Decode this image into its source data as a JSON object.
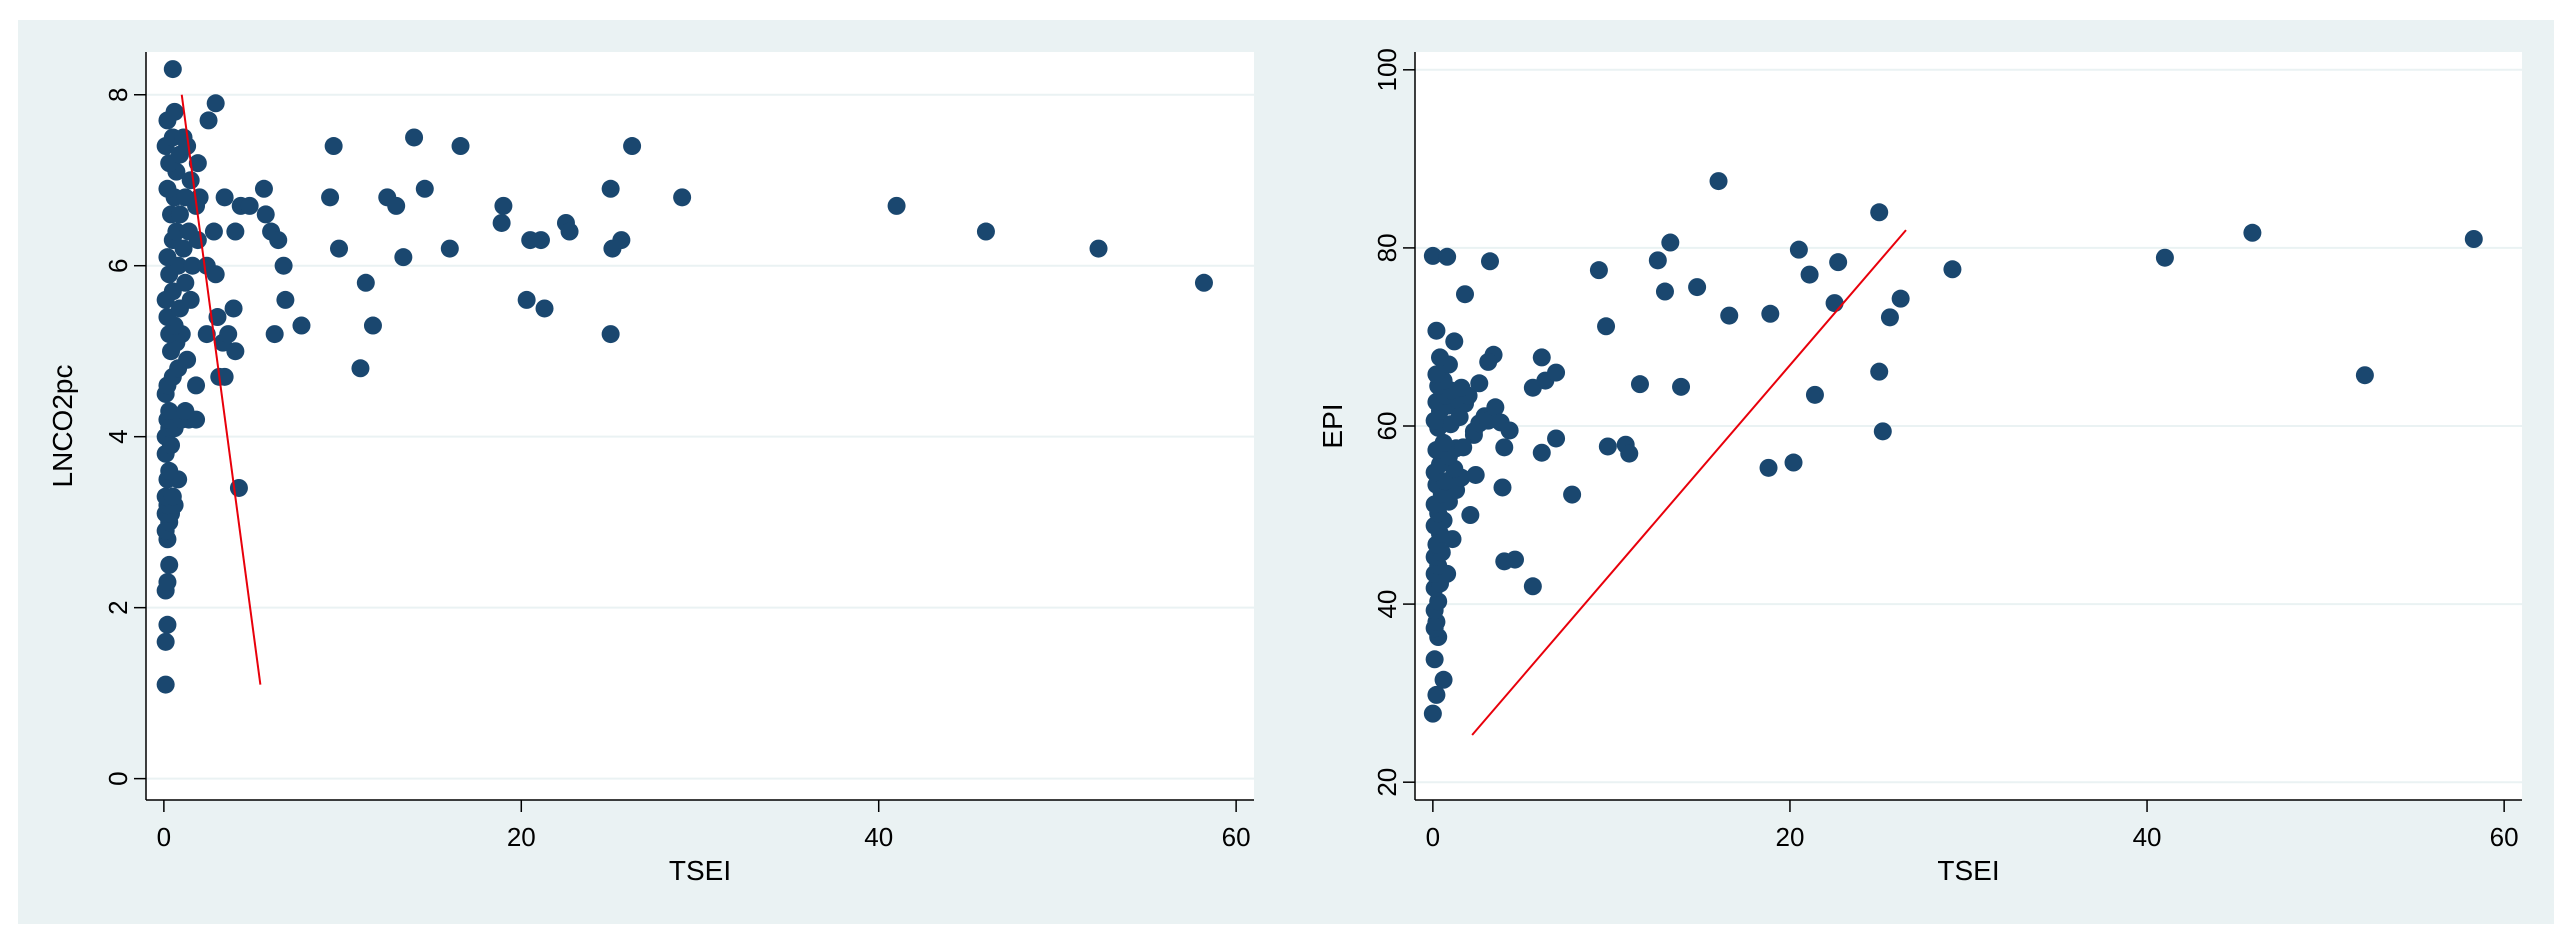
{
  "chart_data": [
    {
      "type": "scatter",
      "xlabel": "TSEI",
      "ylabel": "LNCO2pc",
      "xlim": [
        -1,
        61
      ],
      "ylim": [
        -0.25,
        8.5
      ],
      "xticks": [
        "0",
        "20",
        "40",
        "60"
      ],
      "yticks": [
        "0",
        "2",
        "4",
        "6",
        "8"
      ],
      "grid": "horizontal",
      "marker_color": "#1a476f",
      "fit_color": "#e8000b",
      "fit_line": [
        [
          1.0,
          8.0
        ],
        [
          5.4,
          1.1
        ]
      ],
      "points": [
        [
          0.1,
          1.1
        ],
        [
          0.1,
          1.6
        ],
        [
          0.2,
          1.8
        ],
        [
          0.1,
          2.2
        ],
        [
          0.2,
          2.3
        ],
        [
          0.3,
          2.5
        ],
        [
          0.2,
          2.8
        ],
        [
          0.1,
          2.9
        ],
        [
          0.3,
          3.0
        ],
        [
          0.1,
          3.1
        ],
        [
          0.4,
          3.1
        ],
        [
          0.2,
          3.2
        ],
        [
          0.6,
          3.2
        ],
        [
          0.1,
          3.3
        ],
        [
          0.5,
          3.3
        ],
        [
          0.2,
          3.5
        ],
        [
          0.8,
          3.5
        ],
        [
          0.3,
          3.6
        ],
        [
          0.1,
          3.8
        ],
        [
          0.4,
          3.9
        ],
        [
          0.1,
          4.0
        ],
        [
          0.3,
          4.1
        ],
        [
          0.6,
          4.1
        ],
        [
          0.2,
          4.2
        ],
        [
          1.0,
          4.2
        ],
        [
          1.4,
          4.2
        ],
        [
          1.8,
          4.2
        ],
        [
          0.3,
          4.3
        ],
        [
          1.2,
          4.3
        ],
        [
          0.1,
          4.5
        ],
        [
          1.8,
          4.6
        ],
        [
          0.2,
          4.6
        ],
        [
          0.5,
          4.7
        ],
        [
          0.8,
          4.8
        ],
        [
          1.3,
          4.9
        ],
        [
          0.4,
          5.0
        ],
        [
          0.7,
          5.1
        ],
        [
          1.0,
          5.2
        ],
        [
          0.3,
          5.2
        ],
        [
          0.6,
          5.3
        ],
        [
          0.2,
          5.4
        ],
        [
          0.9,
          5.5
        ],
        [
          1.5,
          5.6
        ],
        [
          0.1,
          5.6
        ],
        [
          0.5,
          5.7
        ],
        [
          1.2,
          5.8
        ],
        [
          0.3,
          5.9
        ],
        [
          0.8,
          6.0
        ],
        [
          1.6,
          6.0
        ],
        [
          0.2,
          6.1
        ],
        [
          1.1,
          6.2
        ],
        [
          0.5,
          6.3
        ],
        [
          1.9,
          6.3
        ],
        [
          0.7,
          6.4
        ],
        [
          1.4,
          6.4
        ],
        [
          0.4,
          6.6
        ],
        [
          0.9,
          6.6
        ],
        [
          1.8,
          6.7
        ],
        [
          0.6,
          6.8
        ],
        [
          1.2,
          6.8
        ],
        [
          0.2,
          6.9
        ],
        [
          1.5,
          7.0
        ],
        [
          0.7,
          7.1
        ],
        [
          0.3,
          7.2
        ],
        [
          1.9,
          7.2
        ],
        [
          0.9,
          7.3
        ],
        [
          0.1,
          7.4
        ],
        [
          1.3,
          7.4
        ],
        [
          0.5,
          7.5
        ],
        [
          1.1,
          7.5
        ],
        [
          0.2,
          7.7
        ],
        [
          0.6,
          7.8
        ],
        [
          0.5,
          8.3
        ],
        [
          2.5,
          7.7
        ],
        [
          2.9,
          7.9
        ],
        [
          3.4,
          6.8
        ],
        [
          2.0,
          6.8
        ],
        [
          2.8,
          6.4
        ],
        [
          2.4,
          6.0
        ],
        [
          2.9,
          5.9
        ],
        [
          2.4,
          5.2
        ],
        [
          3.0,
          5.4
        ],
        [
          3.3,
          5.1
        ],
        [
          3.1,
          4.7
        ],
        [
          3.4,
          4.7
        ],
        [
          3.6,
          5.2
        ],
        [
          4.0,
          5.0
        ],
        [
          3.9,
          5.5
        ],
        [
          4.0,
          6.4
        ],
        [
          4.3,
          6.7
        ],
        [
          4.8,
          6.7
        ],
        [
          4.2,
          3.4
        ],
        [
          5.6,
          6.9
        ],
        [
          5.7,
          6.6
        ],
        [
          6.0,
          6.4
        ],
        [
          6.4,
          6.3
        ],
        [
          6.7,
          6.0
        ],
        [
          6.8,
          5.6
        ],
        [
          6.2,
          5.2
        ],
        [
          7.7,
          5.3
        ],
        [
          9.3,
          6.8
        ],
        [
          9.5,
          7.4
        ],
        [
          9.8,
          6.2
        ],
        [
          11.0,
          4.8
        ],
        [
          11.3,
          5.8
        ],
        [
          11.7,
          5.3
        ],
        [
          12.5,
          6.8
        ],
        [
          13.0,
          6.7
        ],
        [
          13.4,
          6.1
        ],
        [
          14.0,
          7.5
        ],
        [
          14.6,
          6.9
        ],
        [
          16.0,
          6.2
        ],
        [
          16.6,
          7.4
        ],
        [
          18.9,
          6.5
        ],
        [
          19.0,
          6.7
        ],
        [
          20.3,
          5.6
        ],
        [
          20.5,
          6.3
        ],
        [
          21.1,
          6.3
        ],
        [
          21.3,
          5.5
        ],
        [
          22.5,
          6.5
        ],
        [
          22.7,
          6.4
        ],
        [
          25.0,
          6.9
        ],
        [
          25.0,
          5.2
        ],
        [
          25.1,
          6.2
        ],
        [
          25.6,
          6.3
        ],
        [
          26.2,
          7.4
        ],
        [
          29.0,
          6.8
        ],
        [
          41.0,
          6.7
        ],
        [
          46.0,
          6.4
        ],
        [
          52.3,
          6.2
        ],
        [
          58.2,
          5.8
        ]
      ]
    },
    {
      "type": "scatter",
      "xlabel": "TSEI",
      "ylabel": "EPI",
      "xlim": [
        -1,
        61
      ],
      "ylim": [
        18,
        102
      ],
      "xticks": [
        "0",
        "20",
        "40",
        "60"
      ],
      "yticks": [
        "20",
        "40",
        "60",
        "80",
        "100"
      ],
      "grid": "horizontal",
      "marker_color": "#1a476f",
      "fit_color": "#e8000b",
      "fit_line": [
        [
          2.2,
          25.3
        ],
        [
          26.5,
          82.0
        ]
      ],
      "points": [
        [
          0.0,
          27.7
        ],
        [
          0.2,
          29.8
        ],
        [
          0.6,
          31.5
        ],
        [
          0.1,
          33.8
        ],
        [
          0.3,
          36.3
        ],
        [
          0.1,
          37.3
        ],
        [
          0.2,
          38.0
        ],
        [
          0.1,
          39.3
        ],
        [
          0.3,
          40.3
        ],
        [
          0.1,
          41.8
        ],
        [
          0.4,
          42.3
        ],
        [
          0.1,
          43.4
        ],
        [
          0.8,
          43.4
        ],
        [
          0.3,
          44.3
        ],
        [
          0.1,
          45.3
        ],
        [
          0.5,
          45.8
        ],
        [
          0.2,
          46.7
        ],
        [
          1.1,
          47.3
        ],
        [
          0.4,
          47.9
        ],
        [
          0.1,
          48.8
        ],
        [
          0.6,
          49.4
        ],
        [
          0.3,
          50.2
        ],
        [
          0.1,
          51.2
        ],
        [
          0.9,
          51.5
        ],
        [
          0.5,
          52.4
        ],
        [
          1.3,
          52.8
        ],
        [
          0.2,
          53.4
        ],
        [
          0.7,
          53.8
        ],
        [
          1.6,
          54.2
        ],
        [
          0.1,
          54.8
        ],
        [
          1.2,
          55.2
        ],
        [
          0.4,
          55.7
        ],
        [
          0.9,
          56.6
        ],
        [
          0.2,
          57.3
        ],
        [
          1.3,
          57.5
        ],
        [
          1.7,
          57.6
        ],
        [
          0.6,
          58.1
        ],
        [
          0.3,
          59.8
        ],
        [
          1.0,
          60.2
        ],
        [
          2.3,
          59.0
        ],
        [
          0.1,
          60.6
        ],
        [
          1.5,
          61.0
        ],
        [
          0.4,
          61.7
        ],
        [
          0.9,
          62.3
        ],
        [
          1.8,
          62.5
        ],
        [
          0.2,
          62.7
        ],
        [
          1.3,
          63.0
        ],
        [
          0.7,
          63.4
        ],
        [
          2.0,
          63.4
        ],
        [
          1.0,
          64.0
        ],
        [
          0.3,
          64.5
        ],
        [
          1.6,
          64.3
        ],
        [
          0.6,
          65.1
        ],
        [
          2.6,
          64.8
        ],
        [
          0.2,
          65.8
        ],
        [
          0.9,
          66.9
        ],
        [
          0.4,
          67.7
        ],
        [
          1.2,
          69.5
        ],
        [
          0.2,
          70.7
        ],
        [
          1.8,
          74.8
        ],
        [
          0.0,
          79.1
        ],
        [
          0.8,
          79.0
        ],
        [
          2.3,
          59.4
        ],
        [
          2.6,
          60.3
        ],
        [
          2.9,
          61.1
        ],
        [
          3.1,
          60.6
        ],
        [
          3.5,
          62.1
        ],
        [
          3.8,
          60.4
        ],
        [
          4.3,
          59.5
        ],
        [
          4.0,
          57.6
        ],
        [
          2.4,
          54.5
        ],
        [
          2.1,
          50.0
        ],
        [
          3.9,
          53.1
        ],
        [
          4.0,
          44.8
        ],
        [
          4.6,
          45.0
        ],
        [
          5.6,
          42.0
        ],
        [
          7.8,
          52.3
        ],
        [
          6.9,
          58.6
        ],
        [
          6.1,
          57.0
        ],
        [
          5.6,
          64.3
        ],
        [
          6.3,
          65.1
        ],
        [
          6.9,
          66.0
        ],
        [
          6.1,
          67.7
        ],
        [
          3.4,
          68.0
        ],
        [
          3.1,
          67.2
        ],
        [
          3.2,
          78.5
        ],
        [
          9.3,
          77.5
        ],
        [
          9.7,
          71.2
        ],
        [
          9.8,
          57.7
        ],
        [
          10.8,
          57.9
        ],
        [
          11.0,
          56.9
        ],
        [
          11.6,
          64.7
        ],
        [
          12.6,
          78.6
        ],
        [
          13.0,
          75.1
        ],
        [
          13.3,
          80.6
        ],
        [
          13.9,
          64.4
        ],
        [
          14.8,
          75.6
        ],
        [
          16.0,
          87.5
        ],
        [
          16.6,
          72.4
        ],
        [
          18.8,
          55.3
        ],
        [
          18.9,
          72.6
        ],
        [
          20.2,
          55.9
        ],
        [
          20.5,
          79.8
        ],
        [
          21.1,
          77.0
        ],
        [
          21.4,
          63.5
        ],
        [
          22.5,
          73.8
        ],
        [
          22.7,
          78.4
        ],
        [
          25.0,
          84.0
        ],
        [
          25.0,
          66.1
        ],
        [
          25.2,
          59.4
        ],
        [
          25.6,
          72.2
        ],
        [
          26.2,
          74.3
        ],
        [
          29.1,
          77.6
        ],
        [
          41.0,
          78.9
        ],
        [
          45.9,
          81.7
        ],
        [
          52.2,
          65.7
        ],
        [
          58.3,
          81.0
        ]
      ]
    }
  ]
}
